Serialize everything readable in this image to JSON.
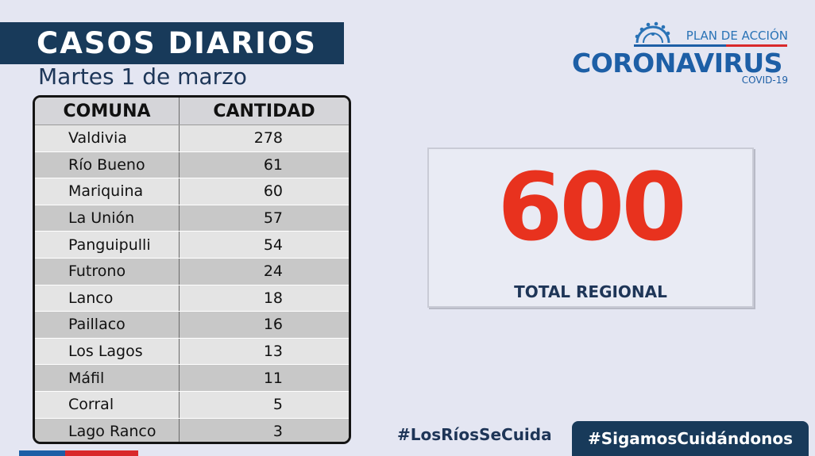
{
  "header": {
    "title": "CASOS DIARIOS",
    "date": "Martes 1 de marzo"
  },
  "table": {
    "col_comuna": "COMUNA",
    "col_cantidad": "CANTIDAD",
    "rows": [
      {
        "comuna": "Valdivia",
        "cantidad": "278"
      },
      {
        "comuna": "Río Bueno",
        "cantidad": "61"
      },
      {
        "comuna": "Mariquina",
        "cantidad": "60"
      },
      {
        "comuna": "La Unión",
        "cantidad": "57"
      },
      {
        "comuna": "Panguipulli",
        "cantidad": "54"
      },
      {
        "comuna": "Futrono",
        "cantidad": "24"
      },
      {
        "comuna": "Lanco",
        "cantidad": "18"
      },
      {
        "comuna": "Paillaco",
        "cantidad": "16"
      },
      {
        "comuna": "Los Lagos",
        "cantidad": "13"
      },
      {
        "comuna": "Máfil",
        "cantidad": "11"
      },
      {
        "comuna": "Corral",
        "cantidad": "5"
      },
      {
        "comuna": "Lago Ranco",
        "cantidad": "3"
      }
    ]
  },
  "logo": {
    "top": "PLAN DE ACCIÓN",
    "main": "CORONAVIRUS",
    "sub": "COVID-19",
    "icon": "virus-icon"
  },
  "total": {
    "value": "600",
    "label": "TOTAL REGIONAL"
  },
  "footer": {
    "hashtag1": "#LosRíosSeCuida",
    "hashtag2": "#SigamosCuidándonos"
  },
  "colors": {
    "navy": "#183a5a",
    "accent_red": "#e8321e",
    "logo_blue": "#1d5fa6",
    "background": "#e4e6f2"
  }
}
